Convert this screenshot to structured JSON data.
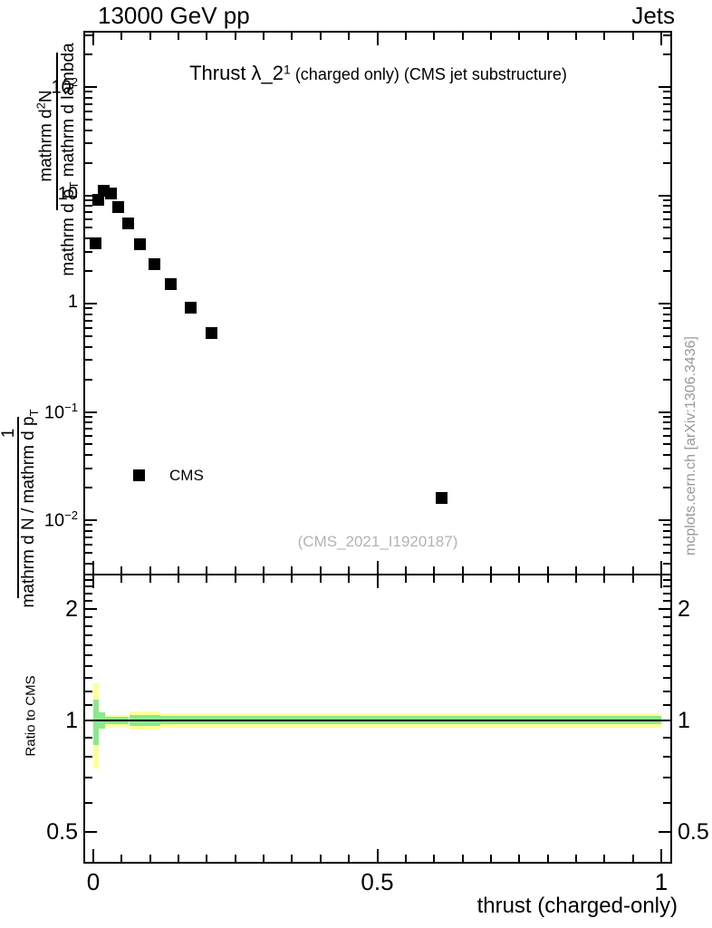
{
  "header": {
    "left": "13000 GeV pp",
    "right": "Jets"
  },
  "title": {
    "main": "Thrust λ_2",
    "sup": "1",
    "note": " (charged only) (CMS jet substructure)"
  },
  "legend": {
    "label": "CMS",
    "marker": "black-square"
  },
  "watermark": "(CMS_2021_I1920187)",
  "side_note": "mcplots.cern.ch [arXiv:1306.3436]",
  "colors": {
    "band_outer": "#ffff99",
    "band_inner": "#8ce88c",
    "marker": "#000000",
    "side_note_gray": "#999999",
    "watermark_gray": "#b3b3b3"
  },
  "ylabel_fractions": {
    "outer": {
      "num": [
        {
          "t": "1",
          "s": ""
        }
      ],
      "den": [
        {
          "t": "mathrm d N / mathrm d p",
          "s": ""
        },
        {
          "t": "T",
          "s": "sub"
        }
      ]
    },
    "inner": {
      "num": [
        {
          "t": "mathrm d",
          "s": ""
        },
        {
          "t": "2",
          "s": "sup"
        },
        {
          "t": "N",
          "s": ""
        }
      ],
      "den": [
        {
          "t": "mathrm d p",
          "s": ""
        },
        {
          "t": "T",
          "s": "sub"
        },
        {
          "t": " mathrm d lambda",
          "s": ""
        }
      ]
    }
  },
  "axes": {
    "x": {
      "label": "thrust (charged-only)",
      "tick_labels": [
        "0",
        "0.5",
        "1"
      ],
      "tick_values": [
        0,
        0.5,
        1
      ],
      "minor_step": 0.05,
      "range": [
        0,
        1
      ]
    },
    "y_main": {
      "ticks": [
        {
          "v": 100,
          "base": "10",
          "exp": "2"
        },
        {
          "v": 10,
          "base": "10",
          "exp": ""
        },
        {
          "v": 1,
          "base": "1",
          "exp": ""
        },
        {
          "v": 0.1,
          "base": "10",
          "exp": "−1"
        },
        {
          "v": 0.01,
          "base": "10",
          "exp": "−2"
        }
      ]
    },
    "y_ratio": {
      "label": "Ratio to CMS",
      "tick_labels": [
        "2",
        "1",
        "0.5"
      ],
      "tick_values": [
        2,
        1,
        0.5
      ],
      "minor_values": [
        0.5,
        0.6,
        0.7,
        0.8,
        0.9,
        1.1,
        1.2,
        1.3,
        1.4,
        1.5,
        1.6,
        1.7,
        1.8,
        1.9,
        2.1,
        2.2,
        2.3,
        2.4
      ]
    }
  },
  "chart_data": {
    "type": "scatter",
    "title": "Thrust λ_2^1 (charged only) (CMS jet substructure)",
    "xlabel": "thrust (charged-only)",
    "ylabel": "1/(dN/dp_T) d^2N/(dp_T dlambda)",
    "xlim": [
      0,
      1
    ],
    "ylog": true,
    "ylim": [
      0.0032,
      324
    ],
    "legend_position": "left-middle",
    "grid": false,
    "series": [
      {
        "name": "CMS",
        "marker": "filled-square",
        "color": "#000000",
        "points": [
          [
            0.004,
            3.6
          ],
          [
            0.009,
            9.0
          ],
          [
            0.018,
            11.1
          ],
          [
            0.031,
            10.4
          ],
          [
            0.044,
            7.8
          ],
          [
            0.062,
            5.5
          ],
          [
            0.082,
            3.5
          ],
          [
            0.107,
            2.3
          ],
          [
            0.136,
            1.5
          ],
          [
            0.171,
            0.91
          ],
          [
            0.208,
            0.53
          ],
          [
            0.614,
            0.016
          ]
        ]
      }
    ],
    "ratio_panel": {
      "ylabel": "Ratio to CMS",
      "ylog": true,
      "ylim": [
        0.41,
        2.49
      ],
      "reference_line": 1.0,
      "band_yellow": [
        [
          0.0,
          0.01,
          0.74,
          1.26
        ],
        [
          0.01,
          0.063,
          0.96,
          1.035
        ],
        [
          0.063,
          0.118,
          0.945,
          1.055
        ],
        [
          0.118,
          1.0,
          0.955,
          1.045
        ]
      ],
      "band_green": [
        [
          0.0,
          0.01,
          0.86,
          1.14
        ],
        [
          0.01,
          0.02,
          0.95,
          1.05
        ],
        [
          0.02,
          0.063,
          0.975,
          1.025
        ],
        [
          0.063,
          0.118,
          0.965,
          1.035
        ],
        [
          0.118,
          1.0,
          0.975,
          1.028
        ]
      ]
    }
  }
}
